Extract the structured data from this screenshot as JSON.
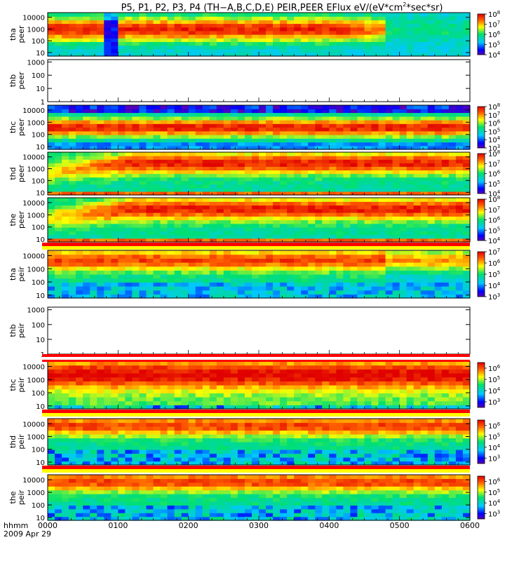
{
  "chart_data": {
    "type": "heatmap",
    "title": "P5, P1, P2, P3, P4 (TH-A,B,C,D,E) PEIR,PEER EFlux eV/(eV*cm2*sec*sr)",
    "title_parts": {
      "main": "P5, P1, P2, P3, P4 (TH−A,B,C,D,E) PEIR,PEER EFlux eV/(eV*cm",
      "sup": "2",
      "tail": "*sec*sr)"
    },
    "x_axis": {
      "label": "hhmm",
      "date_label": "2009 Apr 29",
      "ticks": [
        "0000",
        "0100",
        "0200",
        "0300",
        "0400",
        "0500",
        "0600"
      ],
      "range": [
        "00:00",
        "06:00"
      ]
    },
    "y_axis": {
      "scale": "log",
      "units": "eV"
    },
    "colorbar": {
      "scale": "log",
      "colormap": "rainbow (blue-cyan-green-yellow-red)"
    },
    "panels": [
      {
        "probe": "tha",
        "line1": "tha",
        "line2": "peer",
        "has_data": true,
        "y_ticks": [
          "10",
          "100",
          "1000",
          "10000"
        ],
        "ylim": [
          5,
          25000
        ],
        "cbar_ticks": [
          {
            "b": "10",
            "e": "8"
          },
          {
            "b": "10",
            "e": "7"
          },
          {
            "b": "10",
            "e": "6"
          },
          {
            "b": "10",
            "e": "5"
          },
          {
            "b": "10",
            "e": "4"
          }
        ],
        "cbar_range": [
          4,
          8
        ]
      },
      {
        "probe": "thb",
        "line1": "thb",
        "line2": "peer",
        "has_data": false,
        "y_ticks": [
          "1",
          "10",
          "100",
          "1000"
        ],
        "ylim": [
          1,
          1500
        ]
      },
      {
        "probe": "thc",
        "line1": "thc",
        "line2": "peer",
        "has_data": true,
        "y_ticks": [
          "10",
          "100",
          "1000",
          "10000"
        ],
        "ylim": [
          6,
          25000
        ],
        "cbar_ticks": [
          {
            "b": "10",
            "e": "8"
          },
          {
            "b": "10",
            "e": "7"
          },
          {
            "b": "10",
            "e": "6"
          },
          {
            "b": "10",
            "e": "5"
          },
          {
            "b": "10",
            "e": "4"
          },
          {
            "b": "10",
            "e": "3"
          }
        ],
        "cbar_range": [
          3,
          8
        ]
      },
      {
        "probe": "thd",
        "line1": "thd",
        "line2": "peer",
        "has_data": true,
        "y_ticks": [
          "10",
          "100",
          "1000",
          "10000"
        ],
        "ylim": [
          6,
          25000
        ],
        "cbar_ticks": [
          {
            "b": "10",
            "e": "8"
          },
          {
            "b": "10",
            "e": "7"
          },
          {
            "b": "10",
            "e": "6"
          },
          {
            "b": "10",
            "e": "5"
          },
          {
            "b": "10",
            "e": "4"
          }
        ],
        "cbar_range": [
          4,
          8
        ]
      },
      {
        "probe": "the",
        "line1": "the",
        "line2": "peer",
        "has_data": true,
        "y_ticks": [
          "10",
          "100",
          "1000",
          "10000"
        ],
        "ylim": [
          6,
          25000
        ],
        "cbar_ticks": [
          {
            "b": "10",
            "e": "8"
          },
          {
            "b": "10",
            "e": "7"
          },
          {
            "b": "10",
            "e": "6"
          },
          {
            "b": "10",
            "e": "5"
          },
          {
            "b": "10",
            "e": "4"
          }
        ],
        "cbar_range": [
          4,
          8
        ]
      },
      {
        "probe": "tha",
        "line1": "tha",
        "line2": "peir",
        "has_data": true,
        "y_ticks": [
          "10",
          "100",
          "1000",
          "10000"
        ],
        "ylim": [
          6,
          25000
        ],
        "cbar_ticks": [
          {
            "b": "10",
            "e": "7"
          },
          {
            "b": "10",
            "e": "6"
          },
          {
            "b": "10",
            "e": "5"
          },
          {
            "b": "10",
            "e": "4"
          },
          {
            "b": "10",
            "e": "3"
          }
        ],
        "cbar_range": [
          3,
          7
        ]
      },
      {
        "probe": "thb",
        "line1": "thb",
        "line2": "peir",
        "has_data": false,
        "y_ticks": [
          "1",
          "10",
          "100",
          "1000"
        ],
        "ylim": [
          1,
          1500
        ]
      },
      {
        "probe": "thc",
        "line1": "thc",
        "line2": "peir",
        "has_data": true,
        "y_ticks": [
          "10",
          "100",
          "1000",
          "10000"
        ],
        "ylim": [
          6,
          25000
        ],
        "cbar_ticks": [
          {
            "b": "10",
            "e": "6"
          },
          {
            "b": "10",
            "e": "5"
          },
          {
            "b": "10",
            "e": "4"
          },
          {
            "b": "10",
            "e": "3"
          }
        ],
        "cbar_range": [
          2.5,
          6.5
        ]
      },
      {
        "probe": "thd",
        "line1": "thd",
        "line2": "peir",
        "has_data": true,
        "y_ticks": [
          "10",
          "100",
          "1000",
          "10000"
        ],
        "ylim": [
          6,
          25000
        ],
        "cbar_ticks": [
          {
            "b": "10",
            "e": "6"
          },
          {
            "b": "10",
            "e": "5"
          },
          {
            "b": "10",
            "e": "4"
          },
          {
            "b": "10",
            "e": "3"
          }
        ],
        "cbar_range": [
          2.5,
          6.5
        ]
      },
      {
        "probe": "the",
        "line1": "the",
        "line2": "peir",
        "has_data": true,
        "y_ticks": [
          "10",
          "100",
          "1000",
          "10000"
        ],
        "ylim": [
          6,
          25000
        ],
        "cbar_ticks": [
          {
            "b": "10",
            "e": "6"
          },
          {
            "b": "10",
            "e": "5"
          },
          {
            "b": "10",
            "e": "4"
          },
          {
            "b": "10",
            "e": "3"
          }
        ],
        "cbar_range": [
          2.5,
          6.5
        ]
      }
    ]
  }
}
